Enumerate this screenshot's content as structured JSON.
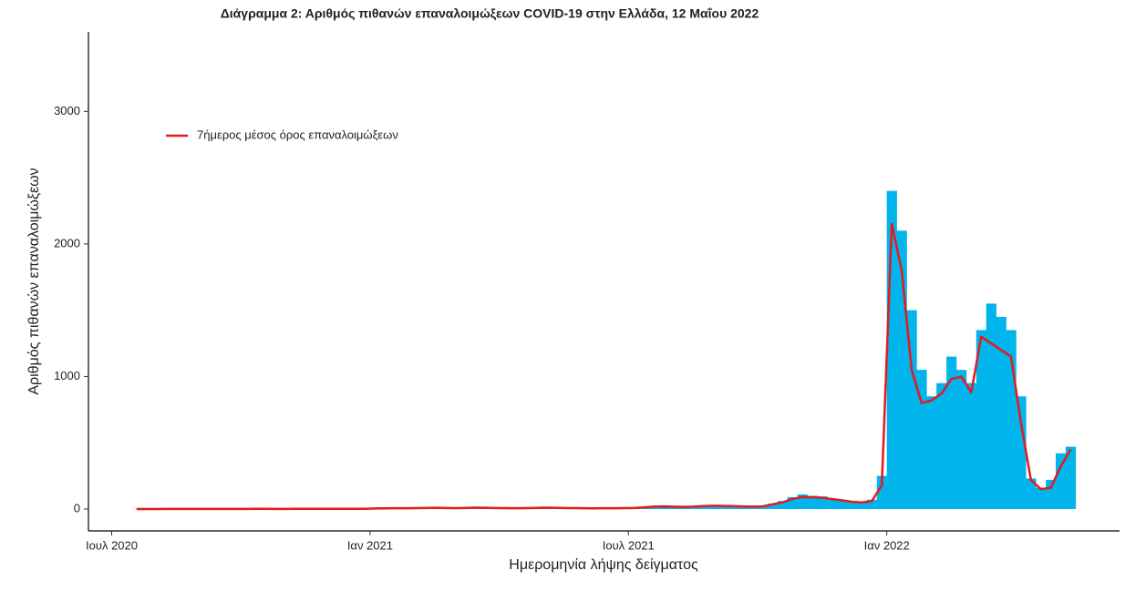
{
  "chart_data": {
    "type": "bar-line",
    "title": "Διάγραμμα 2: Αριθμός πιθανών επαναλοιμώξεων COVID-19 στην Ελλάδα, 12 Μαΐου 2022",
    "x_label": "Ημερομηνία λήψης δείγματος",
    "y_label": "Αριθμός πιθανών επαναλοιμώξεων",
    "categories": [
      "Ιουλ 2020",
      null,
      null,
      null,
      null,
      null,
      null,
      null,
      null,
      null,
      null,
      null,
      null,
      null,
      null,
      null,
      null,
      null,
      null,
      null,
      null,
      null,
      null,
      null,
      null,
      null,
      "Ιαν 2021",
      null,
      null,
      null,
      null,
      null,
      null,
      null,
      null,
      null,
      null,
      null,
      null,
      null,
      null,
      null,
      null,
      null,
      null,
      null,
      null,
      null,
      null,
      null,
      null,
      null,
      "Ιουλ 2021",
      null,
      null,
      null,
      null,
      null,
      null,
      null,
      null,
      null,
      null,
      null,
      null,
      null,
      null,
      null,
      null,
      null,
      null,
      null,
      null,
      null,
      null,
      null,
      null,
      null,
      "Ιαν 2022",
      null,
      null,
      null,
      null,
      null,
      null,
      null,
      null,
      null,
      null,
      null,
      null,
      null,
      null,
      null,
      null,
      null,
      null
    ],
    "bars": {
      "color": "#00b4ec",
      "values": [
        null,
        null,
        1,
        1,
        2,
        1,
        2,
        1,
        1,
        2,
        1,
        2,
        3,
        2,
        1,
        2,
        2,
        3,
        2,
        2,
        3,
        2,
        3,
        2,
        3,
        2,
        5,
        6,
        8,
        6,
        7,
        9,
        10,
        8,
        7,
        9,
        12,
        10,
        8,
        7,
        6,
        8,
        9,
        12,
        10,
        8,
        7,
        6,
        5,
        6,
        7,
        8,
        10,
        15,
        22,
        25,
        20,
        18,
        20,
        25,
        30,
        28,
        25,
        22,
        20,
        24,
        40,
        60,
        90,
        110,
        100,
        95,
        80,
        70,
        60,
        55,
        70,
        250,
        2400,
        2100,
        1500,
        1050,
        850,
        950,
        1150,
        1050,
        950,
        1350,
        1550,
        1450,
        1350,
        850,
        230,
        160,
        220,
        420,
        470
      ]
    },
    "series": [
      {
        "name": "7ήμερος μέσος όρος επαναλοιμώξεων",
        "color": "#e41a1c",
        "values": [
          null,
          null,
          0,
          0,
          0,
          1,
          1,
          1,
          1,
          1,
          1,
          1,
          1,
          1,
          2,
          2,
          1,
          1,
          2,
          2,
          2,
          2,
          2,
          2,
          2,
          2,
          4,
          5,
          6,
          6,
          7,
          8,
          9,
          8,
          7,
          8,
          10,
          9,
          8,
          7,
          6,
          7,
          8,
          10,
          9,
          8,
          7,
          6,
          5,
          6,
          6,
          7,
          8,
          12,
          18,
          20,
          18,
          16,
          18,
          22,
          25,
          24,
          22,
          20,
          18,
          20,
          35,
          50,
          75,
          90,
          88,
          85,
          75,
          65,
          55,
          50,
          60,
          180,
          2150,
          1800,
          1050,
          800,
          820,
          870,
          980,
          1000,
          880,
          1300,
          1250,
          1200,
          1150,
          650,
          220,
          150,
          160,
          320,
          450
        ]
      }
    ],
    "ylim": [
      -165,
      3600
    ],
    "yticks": [
      0,
      1000,
      2000,
      3000
    ],
    "grid": false
  }
}
